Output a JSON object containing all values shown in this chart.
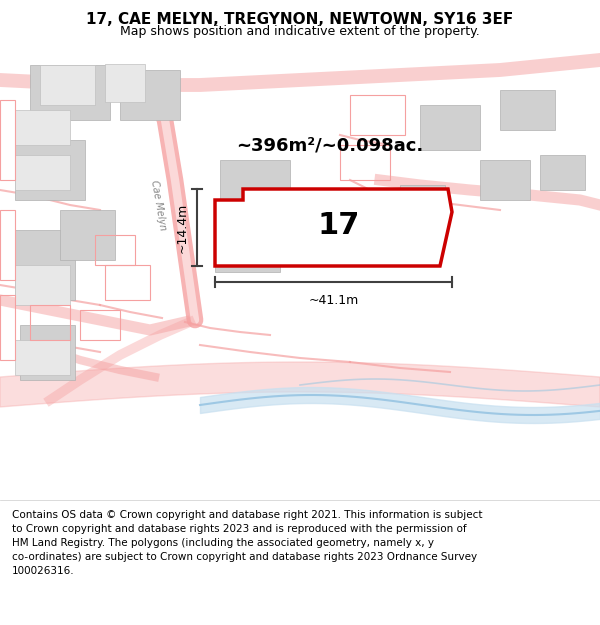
{
  "title_line1": "17, CAE MELYN, TREGYNON, NEWTOWN, SY16 3EF",
  "title_line2": "Map shows position and indicative extent of the property.",
  "area_label": "~396m²/~0.098ac.",
  "property_number": "17",
  "width_label": "~41.1m",
  "height_label": "~14.4m",
  "map_bg": "#f5f5f5",
  "plot_fill": "#ffffff",
  "plot_edge": "#cc0000",
  "road_color": "#f5a0a0",
  "building_color": "#d0d0d0",
  "water_color": "#c8e0f0",
  "dim_color": "#404040",
  "title_fontsize": 11,
  "subtitle_fontsize": 9,
  "footer_fontsize": 7.5,
  "footer_lines": [
    "Contains OS data © Crown copyright and database right 2021. This information is subject",
    "to Crown copyright and database rights 2023 and is reproduced with the permission of",
    "HM Land Registry. The polygons (including the associated geometry, namely x, y",
    "co-ordinates) are subject to Crown copyright and database rights 2023 Ordnance Survey",
    "100026316."
  ]
}
